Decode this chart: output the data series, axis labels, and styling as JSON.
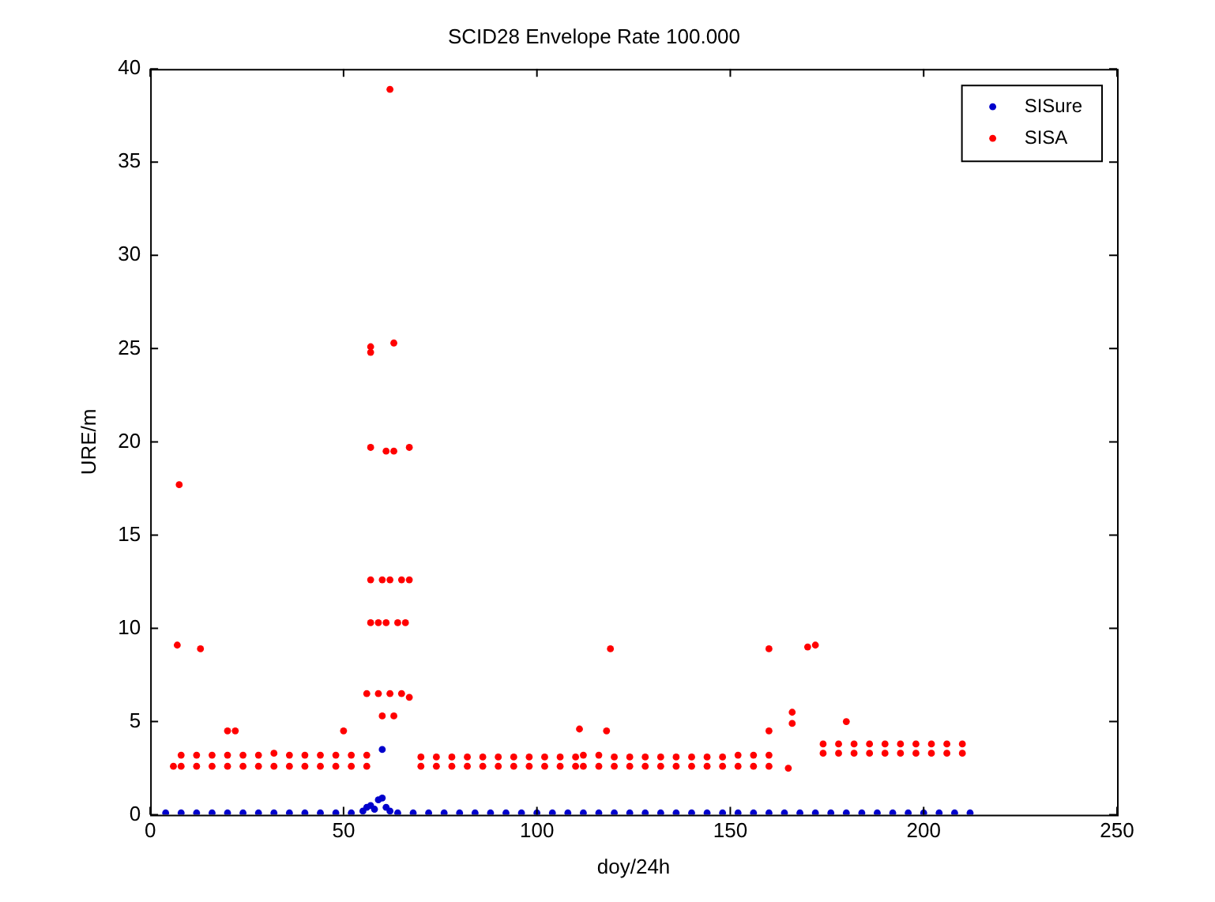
{
  "chart_data": {
    "type": "scatter",
    "title": "SCID28 Envelope Rate 100.000",
    "xlabel": "doy/24h",
    "ylabel": "URE/m",
    "xlim": [
      0,
      250
    ],
    "xticks": [
      0,
      50,
      100,
      150,
      200,
      250
    ],
    "ylim": [
      0,
      40
    ],
    "yticks": [
      0,
      5,
      10,
      15,
      20,
      25,
      30,
      35,
      40
    ],
    "grid": false,
    "legend": "top right",
    "marker": "circle",
    "series": [
      {
        "name": "SISure",
        "color": "#0000cc",
        "x": [
          4,
          8,
          12,
          16,
          20,
          24,
          28,
          32,
          36,
          40,
          44,
          48,
          52,
          55,
          56,
          57,
          58,
          59,
          60,
          60,
          61,
          62,
          64,
          68,
          72,
          76,
          80,
          84,
          88,
          92,
          96,
          100,
          104,
          108,
          112,
          116,
          120,
          124,
          128,
          132,
          136,
          140,
          144,
          148,
          152,
          156,
          160,
          164,
          168,
          172,
          176,
          180,
          184,
          188,
          192,
          196,
          200,
          204,
          208,
          212
        ],
        "values": [
          0.1,
          0.1,
          0.1,
          0.1,
          0.1,
          0.1,
          0.1,
          0.1,
          0.1,
          0.1,
          0.1,
          0.1,
          0.1,
          0.2,
          0.4,
          0.5,
          0.3,
          0.8,
          0.9,
          3.5,
          0.4,
          0.2,
          0.1,
          0.1,
          0.1,
          0.1,
          0.1,
          0.1,
          0.1,
          0.1,
          0.1,
          0.1,
          0.1,
          0.1,
          0.1,
          0.1,
          0.1,
          0.1,
          0.1,
          0.1,
          0.1,
          0.1,
          0.1,
          0.1,
          0.1,
          0.1,
          0.1,
          0.1,
          0.1,
          0.1,
          0.1,
          0.1,
          0.1,
          0.1,
          0.1,
          0.1,
          0.1,
          0.1,
          0.1,
          0.1
        ]
      },
      {
        "name": "SISA",
        "color": "#ff0000",
        "x": [
          6,
          7,
          7.5,
          13,
          20,
          22,
          50,
          57,
          57,
          57,
          62,
          63,
          61,
          63,
          67,
          57,
          60,
          62,
          65,
          67,
          57,
          59,
          61,
          64,
          66,
          56,
          59,
          62,
          65,
          67,
          60,
          63,
          111,
          118,
          119,
          160,
          160,
          166,
          166,
          170,
          172,
          180,
          8,
          12,
          16,
          20,
          24,
          28,
          32,
          36,
          40,
          44,
          48,
          52,
          56,
          8,
          12,
          16,
          20,
          24,
          28,
          32,
          36,
          40,
          44,
          48,
          52,
          56,
          70,
          74,
          78,
          82,
          86,
          90,
          94,
          98,
          102,
          106,
          110,
          70,
          74,
          78,
          82,
          86,
          90,
          94,
          98,
          102,
          106,
          110,
          112,
          116,
          120,
          124,
          128,
          132,
          136,
          140,
          144,
          148,
          152,
          156,
          160,
          112,
          116,
          120,
          124,
          128,
          132,
          136,
          140,
          144,
          148,
          152,
          156,
          160,
          165,
          174,
          178,
          182,
          186,
          190,
          194,
          198,
          202,
          206,
          210,
          174,
          178,
          182,
          186,
          190,
          194,
          198,
          202,
          206,
          210
        ],
        "values": [
          2.6,
          9.1,
          17.7,
          8.9,
          4.5,
          4.5,
          4.5,
          25.1,
          24.8,
          19.7,
          38.9,
          25.3,
          19.5,
          19.5,
          19.7,
          12.6,
          12.6,
          12.6,
          12.6,
          12.6,
          10.3,
          10.3,
          10.3,
          10.3,
          10.3,
          6.5,
          6.5,
          6.5,
          6.5,
          6.3,
          5.3,
          5.3,
          4.6,
          4.5,
          8.9,
          8.9,
          4.5,
          5.5,
          4.9,
          9.0,
          9.1,
          5.0,
          2.6,
          2.6,
          2.6,
          2.6,
          2.6,
          2.6,
          2.6,
          2.6,
          2.6,
          2.6,
          2.6,
          2.6,
          2.6,
          3.2,
          3.2,
          3.2,
          3.2,
          3.2,
          3.2,
          3.3,
          3.2,
          3.2,
          3.2,
          3.2,
          3.2,
          3.2,
          2.6,
          2.6,
          2.6,
          2.6,
          2.6,
          2.6,
          2.6,
          2.6,
          2.6,
          2.6,
          2.6,
          3.1,
          3.1,
          3.1,
          3.1,
          3.1,
          3.1,
          3.1,
          3.1,
          3.1,
          3.1,
          3.1,
          2.6,
          2.6,
          2.6,
          2.6,
          2.6,
          2.6,
          2.6,
          2.6,
          2.6,
          2.6,
          2.6,
          2.6,
          2.6,
          3.2,
          3.2,
          3.1,
          3.1,
          3.1,
          3.1,
          3.1,
          3.1,
          3.1,
          3.1,
          3.2,
          3.2,
          3.2,
          2.5,
          3.3,
          3.3,
          3.3,
          3.3,
          3.3,
          3.3,
          3.3,
          3.3,
          3.3,
          3.3,
          3.8,
          3.8,
          3.8,
          3.8,
          3.8,
          3.8,
          3.8,
          3.8,
          3.8,
          3.8
        ]
      }
    ]
  }
}
